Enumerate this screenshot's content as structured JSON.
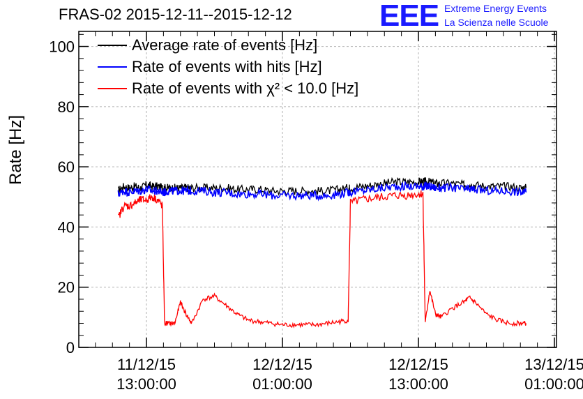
{
  "header": {
    "title": "FRAS-02 2015-12-11--2015-12-12",
    "logo_text": "EEE",
    "logo_line1": "Extreme Energy Events",
    "logo_line2": "La Scienza nelle Scuole",
    "logo_color": "#1a1aff"
  },
  "chart_data": {
    "type": "line",
    "title": "FRAS-02 2015-12-11--2015-12-12",
    "ylabel": "Rate [Hz]",
    "xlabel": "",
    "ylim": [
      0,
      105
    ],
    "grid": true,
    "legend_position": "top-left",
    "x_ticks": [
      {
        "date": "11/12/15",
        "time": "13:00:00"
      },
      {
        "date": "12/12/15",
        "time": "01:00:00"
      },
      {
        "date": "12/12/15",
        "time": "13:00:00"
      },
      {
        "date": "13/12/15",
        "time": "01:00:00"
      }
    ],
    "y_ticks": [
      0,
      20,
      40,
      60,
      80,
      100
    ],
    "x_hours": [
      10.5,
      11,
      11.5,
      12,
      12.5,
      13,
      13.5,
      14,
      14.4,
      14.6,
      15,
      15.5,
      16,
      16.5,
      17,
      18,
      19,
      20,
      21,
      22,
      23,
      24,
      25,
      26,
      27,
      28,
      29,
      30,
      30.8,
      31,
      32,
      33,
      34,
      35,
      36,
      37,
      37.4,
      37.6,
      38,
      38.5,
      39,
      40,
      41,
      41.5,
      42,
      43,
      44,
      45,
      46,
      46.5
    ],
    "series": [
      {
        "name": "Average rate of events [Hz]",
        "color": "#000000",
        "values": [
          52,
          53.5,
          53,
          53.5,
          53,
          54,
          53.5,
          53.5,
          53,
          53,
          53,
          53,
          53,
          53,
          53,
          53,
          53,
          53,
          52.5,
          52.5,
          52.5,
          52,
          52,
          52,
          52,
          52,
          52,
          52.5,
          53,
          53,
          53.5,
          54,
          54.5,
          55,
          55,
          55,
          55,
          55,
          55,
          54.5,
          54.5,
          54.5,
          54,
          54,
          54,
          53.5,
          53.5,
          53.5,
          53,
          53
        ]
      },
      {
        "name": "Rate of events with hits [Hz]",
        "color": "#0000ff",
        "values": [
          51,
          52,
          51.5,
          52,
          52,
          52.5,
          52,
          52,
          51.5,
          51.5,
          52,
          52,
          52,
          52,
          52,
          52,
          51.5,
          51.5,
          51,
          51,
          51,
          50.5,
          50.5,
          50.5,
          50.5,
          50.5,
          50.5,
          51,
          51.5,
          51.5,
          52,
          52.5,
          53,
          53.5,
          53.5,
          53.5,
          53.5,
          53.5,
          53.5,
          53,
          53,
          53,
          52.5,
          52.5,
          52.5,
          52,
          52,
          52,
          51.5,
          51.5
        ]
      },
      {
        "name": "Rate of events with χ² < 10.0 [Hz]",
        "color": "#ff0000",
        "values": [
          43,
          47,
          47,
          48,
          49,
          49,
          50,
          49,
          47,
          8,
          8,
          8,
          15,
          11,
          8,
          16,
          17,
          14,
          11,
          9,
          8.5,
          8,
          7.5,
          7.5,
          7.5,
          7.5,
          8,
          8.5,
          9,
          48,
          49,
          49.5,
          50,
          50.5,
          50.5,
          51,
          51,
          8,
          19,
          11,
          10,
          13,
          15,
          16.5,
          15,
          11,
          9,
          8,
          8,
          8
        ]
      }
    ]
  }
}
